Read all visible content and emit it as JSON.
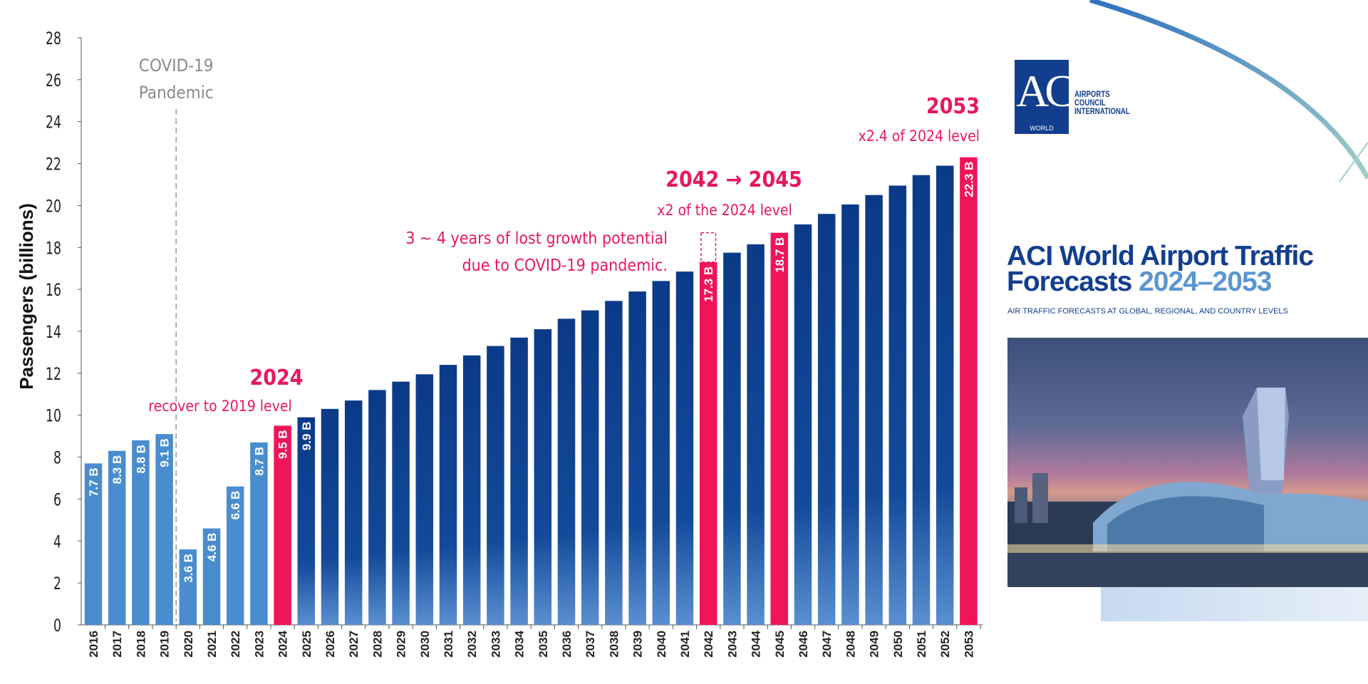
{
  "chart_data": {
    "type": "bar",
    "ylabel": "Passengers (billions)",
    "xlabel": "",
    "ylim": [
      0,
      28
    ],
    "yticks": [
      0,
      2,
      4,
      6,
      8,
      10,
      12,
      14,
      16,
      18,
      20,
      22,
      24,
      26,
      28
    ],
    "grid": false,
    "categories": [
      "2016",
      "2017",
      "2018",
      "2019",
      "2020",
      "2021",
      "2022",
      "2023",
      "2024",
      "2025",
      "2026",
      "2027",
      "2028",
      "2029",
      "2030",
      "2031",
      "2032",
      "2033",
      "2034",
      "2035",
      "2036",
      "2037",
      "2038",
      "2039",
      "2040",
      "2041",
      "2042",
      "2043",
      "2044",
      "2045",
      "2046",
      "2047",
      "2048",
      "2049",
      "2050",
      "2051",
      "2052",
      "2053"
    ],
    "values": [
      7.7,
      8.3,
      8.8,
      9.1,
      3.6,
      4.6,
      6.6,
      8.7,
      9.5,
      9.9,
      10.3,
      10.7,
      11.2,
      11.6,
      11.95,
      12.4,
      12.85,
      13.3,
      13.7,
      14.1,
      14.6,
      15.0,
      15.45,
      15.9,
      16.4,
      16.85,
      17.3,
      17.75,
      18.15,
      18.7,
      19.1,
      19.6,
      20.05,
      20.5,
      20.95,
      21.45,
      21.9,
      22.3
    ],
    "data_labels": {
      "2016": "7.7 B",
      "2017": "8.3 B",
      "2018": "8.8 B",
      "2019": "9.1 B",
      "2020": "3.6 B",
      "2021": "4.6 B",
      "2022": "6.6 B",
      "2023": "8.7 B",
      "2024": "9.5 B",
      "2025": "9.9 B",
      "2042": "17.3 B",
      "2045": "18.7 B",
      "2053": "22.3 B"
    },
    "highlight_years": [
      "2024",
      "2042",
      "2045",
      "2053"
    ],
    "historical_years_end": "2023",
    "lost_growth_target": 18.7,
    "colors": {
      "historical": "#4a8dce",
      "forecast": "#0b3a88",
      "forecast_light": "#5a8fd0",
      "highlight": "#f0145a",
      "annotation": "#e8185a",
      "covid": "#8a8a8a"
    },
    "annotations": {
      "covid_line": [
        "COVID-19",
        "Pandemic"
      ],
      "recover_year": "2024",
      "recover_text": "recover to 2019 level",
      "lost_growth": [
        "3 ~ 4 years of lost growth potential",
        "due to COVID-19 pandemic."
      ],
      "double_title": "2042 → 2045",
      "double_text": "x2 of the 2024 level",
      "end_title": "2053",
      "end_text": "x2.4 of 2024 level"
    }
  },
  "logo": {
    "mark": "ACI",
    "world": "WORLD",
    "lines": [
      "AIRPORTS",
      "COUNCIL",
      "INTERNATIONAL"
    ]
  },
  "report": {
    "title_line1": "ACI World Airport Traffic",
    "title_line2": "Forecasts",
    "title_years": "2024–2053",
    "subtitle": "AIR TRAFFIC FORECASTS AT GLOBAL, REGIONAL, AND COUNTRY LEVELS"
  }
}
